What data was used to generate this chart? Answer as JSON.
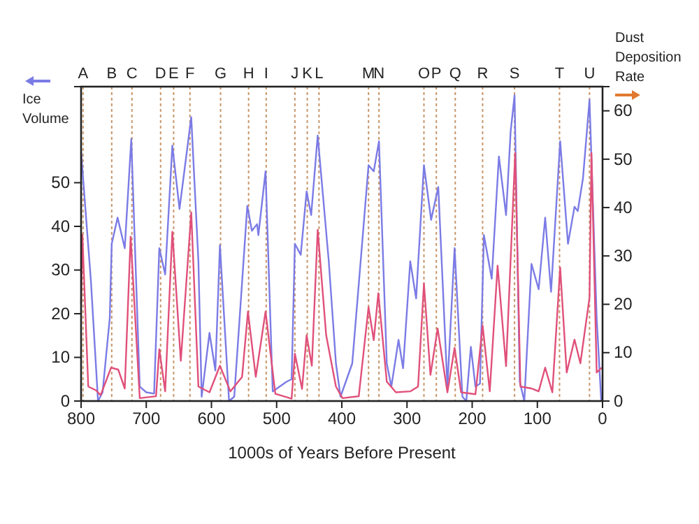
{
  "chart_data": {
    "type": "line",
    "xlabel": "1000s of Years Before Present",
    "ylabel": "Ice Volume",
    "y2label": "Dust Deposition Rate",
    "xlim": [
      800,
      0
    ],
    "xticks": [
      800,
      700,
      600,
      500,
      400,
      300,
      200,
      100,
      0
    ],
    "ylim": [
      0,
      72
    ],
    "yticks": [
      0,
      10,
      20,
      30,
      40,
      50
    ],
    "y2lim": [
      0,
      65
    ],
    "y2ticks": [
      0,
      10,
      20,
      30,
      40,
      50,
      60
    ],
    "grid": false,
    "marker": "none",
    "line_style": "solid",
    "series": [
      {
        "color": "#7b7be6",
        "x": [
          800,
          785,
          774,
          767,
          756,
          753,
          744,
          733,
          723,
          710,
          700,
          688,
          680,
          671,
          660,
          649,
          631,
          620,
          615,
          603,
          594,
          587,
          573,
          565,
          545,
          538,
          530,
          528,
          517,
          506,
          485,
          477,
          472,
          463,
          454,
          447,
          437,
          420,
          409,
          402,
          384,
          359,
          351,
          343,
          331,
          324,
          313,
          306,
          295,
          286,
          274,
          263,
          252,
          238,
          227,
          215,
          209,
          202,
          195,
          188,
          182,
          170,
          159,
          148,
          141,
          135,
          127,
          120,
          109,
          98,
          88,
          79,
          65,
          53,
          43,
          38,
          30,
          20,
          9,
          2
        ],
        "values": [
          57,
          27.7,
          0,
          2,
          19,
          36,
          42,
          35,
          60,
          3.3,
          2,
          1.7,
          35,
          29,
          58.5,
          44,
          65,
          32,
          1,
          15.6,
          7,
          35.7,
          0,
          1,
          44.7,
          39,
          40.5,
          38,
          52.6,
          2.2,
          4.4,
          5,
          36,
          33.5,
          48,
          42.6,
          60.8,
          32,
          8.6,
          1,
          8.6,
          54,
          52.6,
          59.5,
          8.6,
          3.3,
          14,
          7.5,
          32,
          23.5,
          54,
          41.5,
          49,
          3.3,
          35,
          1,
          0,
          12.4,
          3.3,
          4,
          38,
          28,
          56,
          42.6,
          61.7,
          70,
          4.4,
          0,
          31.4,
          25.6,
          42,
          25,
          59.5,
          36,
          44.5,
          43.5,
          51,
          69,
          19,
          0
        ]
      },
      {
        "color": "#e0507a",
        "axis": "y2",
        "x": [
          800,
          798,
          789,
          777,
          770,
          754,
          743,
          733,
          724,
          710,
          685,
          680,
          671,
          660,
          647,
          631,
          620,
          603,
          587,
          571,
          553,
          544,
          532,
          517,
          502,
          477,
          472,
          461,
          454,
          446,
          437,
          424,
          409,
          399,
          374,
          359,
          351,
          344,
          331,
          317,
          295,
          283,
          274,
          264,
          253,
          238,
          227,
          217,
          195,
          184,
          173,
          161,
          148,
          134,
          126,
          109,
          98,
          88,
          77,
          65,
          55,
          43,
          34,
          20,
          17,
          9,
          1
        ],
        "values": [
          20,
          34.4,
          3,
          2.2,
          1.2,
          6.9,
          6.5,
          2.6,
          34,
          0.6,
          1,
          10.7,
          2,
          35,
          8.3,
          39,
          3,
          1.8,
          7.3,
          2,
          5,
          18.5,
          5,
          18.5,
          1.5,
          0.5,
          9.8,
          2.5,
          13.6,
          7.3,
          35.4,
          13.6,
          3,
          0.6,
          1,
          19.4,
          12.6,
          22.3,
          4,
          1.8,
          2,
          3,
          24.3,
          5.4,
          15,
          1.8,
          11,
          1.8,
          1.4,
          15.6,
          2,
          28,
          7.2,
          51.3,
          3,
          2.6,
          2,
          6.9,
          1.8,
          27.6,
          5.9,
          12.7,
          7.8,
          21.4,
          51.3,
          5.9,
          6.9
        ]
      }
    ],
    "ref_lines": [
      {
        "axis": "x",
        "value": 797,
        "label": "A",
        "color": "#c8966a",
        "line_style": "dotted"
      },
      {
        "axis": "x",
        "value": 753,
        "label": "B",
        "color": "#c8966a",
        "line_style": "dotted"
      },
      {
        "axis": "x",
        "value": 722,
        "label": "C",
        "color": "#c8966a",
        "line_style": "dotted"
      },
      {
        "axis": "x",
        "value": 678,
        "label": "D",
        "color": "#c8966a",
        "line_style": "dotted"
      },
      {
        "axis": "x",
        "value": 658,
        "label": "E",
        "color": "#c8966a",
        "line_style": "dotted"
      },
      {
        "axis": "x",
        "value": 633,
        "label": "F",
        "color": "#c8966a",
        "line_style": "dotted"
      },
      {
        "axis": "x",
        "value": 586,
        "label": "G",
        "color": "#c8966a",
        "line_style": "dotted"
      },
      {
        "axis": "x",
        "value": 543,
        "label": "H",
        "color": "#c8966a",
        "line_style": "dotted"
      },
      {
        "axis": "x",
        "value": 516,
        "label": "I",
        "color": "#c8966a",
        "line_style": "dotted"
      },
      {
        "axis": "x",
        "value": 472,
        "label": "J",
        "color": "#c8966a",
        "line_style": "dotted"
      },
      {
        "axis": "x",
        "value": 453,
        "label": "K",
        "color": "#c8966a",
        "line_style": "dotted"
      },
      {
        "axis": "x",
        "value": 435,
        "label": "L",
        "color": "#c8966a",
        "line_style": "dotted"
      },
      {
        "axis": "x",
        "value": 359,
        "label": "M",
        "color": "#c8966a",
        "line_style": "dotted"
      },
      {
        "axis": "x",
        "value": 343,
        "label": "N",
        "color": "#c8966a",
        "line_style": "dotted"
      },
      {
        "axis": "x",
        "value": 274,
        "label": "O",
        "color": "#c8966a",
        "line_style": "dotted"
      },
      {
        "axis": "x",
        "value": 255,
        "label": "P",
        "color": "#c8966a",
        "line_style": "dotted"
      },
      {
        "axis": "x",
        "value": 226,
        "label": "Q",
        "color": "#c8966a",
        "line_style": "dotted"
      },
      {
        "axis": "x",
        "value": 184,
        "label": "R",
        "color": "#c8966a",
        "line_style": "dotted"
      },
      {
        "axis": "x",
        "value": 135,
        "label": "S",
        "color": "#c8966a",
        "line_style": "dotted"
      },
      {
        "axis": "x",
        "value": 66,
        "label": "T",
        "color": "#c8966a",
        "line_style": "dotted"
      },
      {
        "axis": "x",
        "value": 20,
        "label": "U",
        "color": "#c8966a",
        "line_style": "dotted"
      }
    ]
  }
}
